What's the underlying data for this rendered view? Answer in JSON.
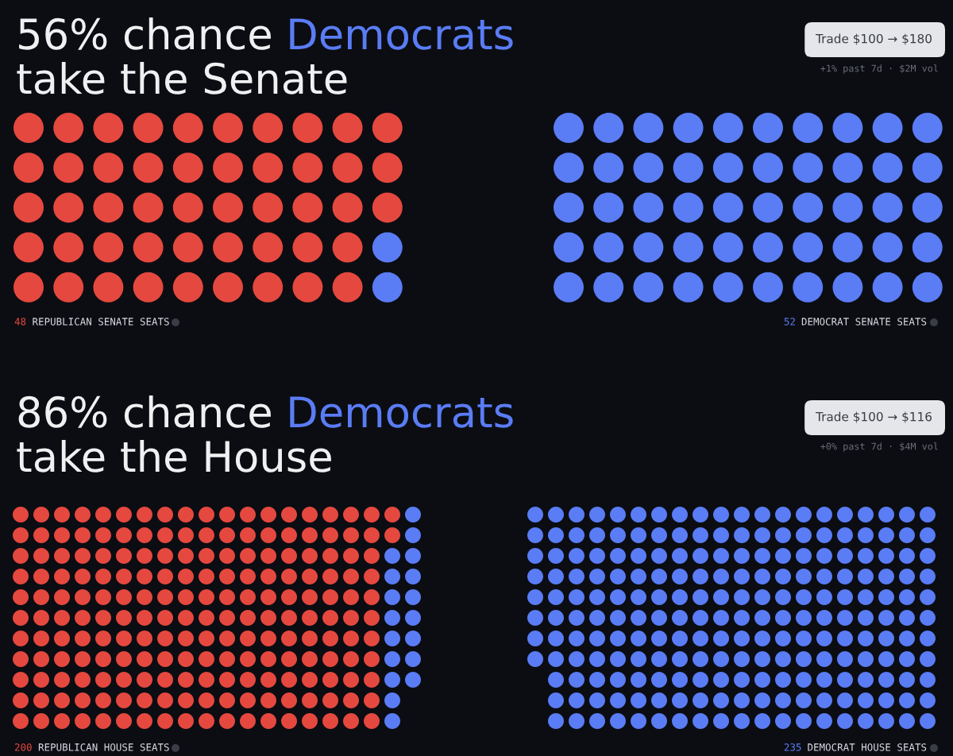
{
  "chart_data": [
    {
      "type": "other",
      "title": "56% chance Democrats take the Senate",
      "categories": [
        "REPUBLICAN SENATE SEATS",
        "DEMOCRAT SENATE SEATS"
      ],
      "values": [
        48,
        52
      ],
      "colors": [
        "#e5483f",
        "#5a7cf5"
      ],
      "data_labels": true,
      "annotations": [
        "Trade $100 → $180",
        "+1% past 7d · $2M vol"
      ]
    },
    {
      "type": "other",
      "title": "86% chance Democrats take the House",
      "categories": [
        "REPUBLICAN HOUSE SEATS",
        "DEMOCRAT HOUSE SEATS"
      ],
      "values": [
        200,
        235
      ],
      "colors": [
        "#e5483f",
        "#5a7cf5"
      ],
      "data_labels": true,
      "annotations": [
        "Trade $100 → $116",
        "+0% past 7d · $4M vol"
      ]
    }
  ]
}
